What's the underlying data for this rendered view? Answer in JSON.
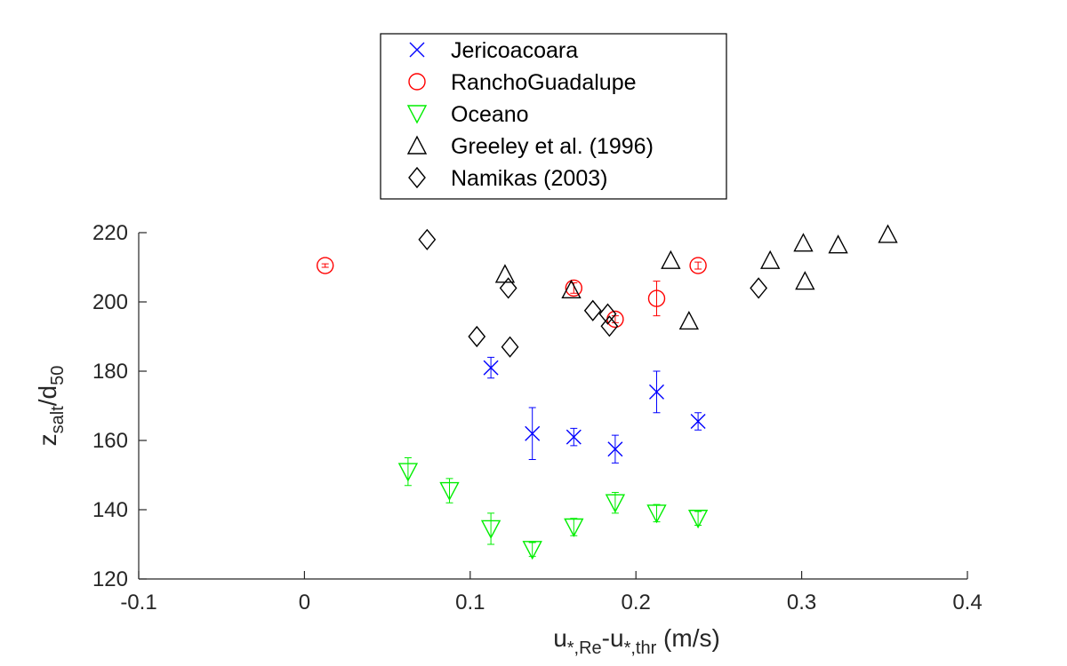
{
  "chart_data": {
    "type": "scatter",
    "title": "",
    "xlabel": {
      "main": "u",
      "sub1": "*,Re",
      "mid": "-u",
      "sub2": "*,thr",
      "tail": " (m/s)"
    },
    "ylabel": {
      "main": "z",
      "sub1": "salt",
      "mid": "/d",
      "sub2": "50"
    },
    "xlim": [
      -0.1,
      0.4
    ],
    "ylim": [
      120,
      220
    ],
    "xticks": [
      -0.1,
      0,
      0.1,
      0.2,
      0.3,
      0.4
    ],
    "xtick_labels": [
      "-0.1",
      "0",
      "0.1",
      "0.2",
      "0.3",
      "0.4"
    ],
    "yticks": [
      120,
      140,
      160,
      180,
      200,
      220
    ],
    "ytick_labels": [
      "120",
      "140",
      "160",
      "180",
      "200",
      "220"
    ],
    "grid": false,
    "legend_position": "top-center",
    "series": [
      {
        "name": "Jericoacoara",
        "marker": "x",
        "color": "#0000ff",
        "x": [
          0.1125,
          0.1375,
          0.1625,
          0.1875,
          0.2125,
          0.2375
        ],
        "y": [
          181,
          162,
          161,
          157.5,
          174,
          165.5
        ],
        "err": [
          3,
          7.5,
          2.5,
          4,
          6,
          2.5
        ]
      },
      {
        "name": "RanchoGuadalupe",
        "marker": "circle",
        "color": "#ff0000",
        "x": [
          0.0125,
          0.1625,
          0.1875,
          0.2125,
          0.2375
        ],
        "y": [
          210.5,
          204,
          195,
          201,
          210.5
        ],
        "err": [
          0.5,
          1.5,
          1,
          5,
          1
        ]
      },
      {
        "name": "Oceano",
        "marker": "triangle-down",
        "color": "#00ee00",
        "x": [
          0.0625,
          0.0875,
          0.1125,
          0.1375,
          0.1625,
          0.1875,
          0.2125,
          0.2375
        ],
        "y": [
          151,
          145.5,
          134.5,
          128.5,
          135,
          142,
          139,
          137.5
        ],
        "err": [
          4,
          3.5,
          4.5,
          2,
          2.5,
          3,
          2.5,
          2
        ]
      },
      {
        "name": "Greeley et al. (1996)",
        "marker": "triangle-up",
        "color": "#000000",
        "x": [
          0.121,
          0.161,
          0.221,
          0.232,
          0.281,
          0.301,
          0.302,
          0.322,
          0.352
        ],
        "y": [
          208,
          203.5,
          212,
          194.5,
          212,
          217,
          206,
          216.5,
          219.5
        ]
      },
      {
        "name": "Namikas (2003)",
        "marker": "diamond",
        "color": "#000000",
        "x": [
          0.074,
          0.104,
          0.123,
          0.124,
          0.174,
          0.183,
          0.184,
          0.274
        ],
        "y": [
          218,
          190,
          204,
          187,
          197.5,
          196.5,
          193,
          204
        ]
      }
    ]
  }
}
